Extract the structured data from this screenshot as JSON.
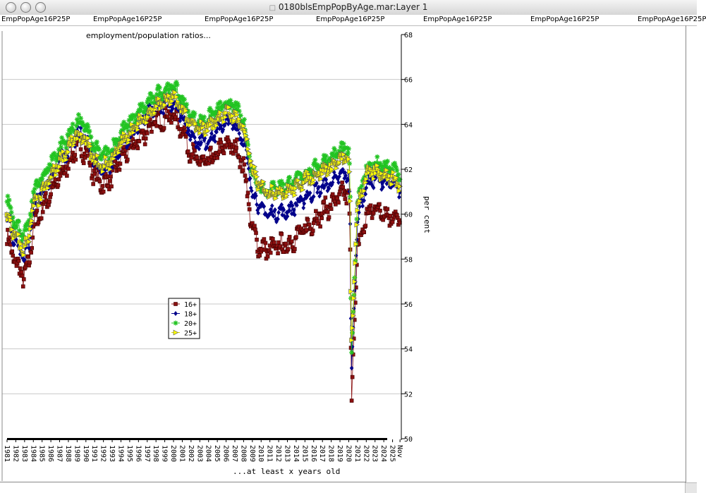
{
  "window": {
    "title": "0180blsEmpPopByAge.mar:Layer 1"
  },
  "tabs": [
    "EmpPopAge16P25P",
    "EmpPopAge16P25P",
    "EmpPopAge16P25P",
    "EmpPopAge16P25P",
    "EmpPopAge16P25P",
    "EmpPopAge16P25P",
    "EmpPopAge16P25P"
  ],
  "colors": {
    "s16": "#8b1010",
    "s18": "#00008b",
    "s20": "#22c422",
    "s25": "#ffff00"
  },
  "chart_data": {
    "type": "line",
    "title": "employment/population ratios...",
    "xlabel": "...at least x years old",
    "ylabel": "per cent",
    "ylim": [
      50,
      68
    ],
    "yticks": [
      50,
      52,
      54,
      56,
      58,
      60,
      62,
      64,
      66,
      68
    ],
    "xlim": [
      1981,
      2026.0
    ],
    "xtick_labels": [
      "1981",
      "1982",
      "1983",
      "1984",
      "1985",
      "1986",
      "1987",
      "1988",
      "1989",
      "1990",
      "1991",
      "1992",
      "1993",
      "1994",
      "1995",
      "1996",
      "1997",
      "1998",
      "1999",
      "2000",
      "2001",
      "2002",
      "2003",
      "2004",
      "2005",
      "2006",
      "2007",
      "2008",
      "2009",
      "2010",
      "2011",
      "2012",
      "2013",
      "2014",
      "2015",
      "2016",
      "2017",
      "2018",
      "2019",
      "2020",
      "2021",
      "2022",
      "2023",
      "2024",
      "2025",
      "Nov"
    ],
    "legend": {
      "position": "middle-left",
      "entries": [
        "16+",
        "18+",
        "20+",
        "25+"
      ]
    },
    "grid": "horizontal",
    "sampling": "annual anchors, drawn monthly with seasonal jitter",
    "series": [
      {
        "name": "16+",
        "marker": "square",
        "x": [
          1981,
          1982,
          1982.9,
          1983.5,
          1984,
          1985,
          1986,
          1987,
          1988,
          1989,
          1990,
          1991,
          1992,
          1993,
          1994,
          1995,
          1996,
          1997,
          1998,
          1999,
          2000,
          2001,
          2002,
          2003,
          2004,
          2005,
          2006,
          2007,
          2008,
          2009,
          2009.7,
          2010,
          2011,
          2012,
          2013,
          2014,
          2015,
          2016,
          2017,
          2018,
          2019,
          2020.0,
          2020.15,
          2020.3,
          2020.5,
          2021,
          2022,
          2023,
          2024,
          2025,
          2025.9
        ],
        "y": [
          59.0,
          57.8,
          57.2,
          57.8,
          59.5,
          60.2,
          61.0,
          61.6,
          62.3,
          63.0,
          62.8,
          61.7,
          61.3,
          61.7,
          62.5,
          62.9,
          63.3,
          63.8,
          64.1,
          64.3,
          64.4,
          63.8,
          62.7,
          62.3,
          62.3,
          62.7,
          63.1,
          63.0,
          62.2,
          59.3,
          58.6,
          58.5,
          58.4,
          58.6,
          58.6,
          59.0,
          59.3,
          59.7,
          60.1,
          60.4,
          60.8,
          61.0,
          59.2,
          51.3,
          53.8,
          58.4,
          59.9,
          60.3,
          60.1,
          59.9,
          59.7
        ]
      },
      {
        "name": "18+",
        "marker": "diamond",
        "x": [
          1981,
          1982,
          1982.9,
          1983.5,
          1984,
          1985,
          1986,
          1987,
          1988,
          1989,
          1990,
          1991,
          1992,
          1993,
          1994,
          1995,
          1996,
          1997,
          1998,
          1999,
          2000,
          2001,
          2002,
          2003,
          2004,
          2005,
          2006,
          2007,
          2008,
          2009,
          2009.7,
          2010,
          2011,
          2012,
          2013,
          2014,
          2015,
          2016,
          2017,
          2018,
          2019,
          2020.0,
          2020.15,
          2020.3,
          2020.5,
          2021,
          2022,
          2023,
          2024,
          2025,
          2025.9
        ],
        "y": [
          59.9,
          58.7,
          58.1,
          58.7,
          60.3,
          61.0,
          61.7,
          62.3,
          62.9,
          63.6,
          63.4,
          62.3,
          61.9,
          62.3,
          63.1,
          63.5,
          63.9,
          64.4,
          64.8,
          64.9,
          65.0,
          64.4,
          63.5,
          63.2,
          63.3,
          63.7,
          64.1,
          64.0,
          63.3,
          61.0,
          60.4,
          60.2,
          60.0,
          60.1,
          60.1,
          60.4,
          60.7,
          61.0,
          61.2,
          61.4,
          61.7,
          61.8,
          60.4,
          52.7,
          55.0,
          59.8,
          61.3,
          61.6,
          61.5,
          61.3,
          61.1
        ]
      },
      {
        "name": "20+",
        "marker": "asterisk",
        "x": [
          1981,
          1982,
          1982.9,
          1983.5,
          1984,
          1985,
          1986,
          1987,
          1988,
          1989,
          1990,
          1991,
          1992,
          1993,
          1994,
          1995,
          1996,
          1997,
          1998,
          1999,
          2000,
          2001,
          2002,
          2003,
          2004,
          2005,
          2006,
          2007,
          2008,
          2009,
          2009.7,
          2010,
          2011,
          2012,
          2013,
          2014,
          2015,
          2016,
          2017,
          2018,
          2019,
          2020.0,
          2020.15,
          2020.3,
          2020.5,
          2021,
          2022,
          2023,
          2024,
          2025,
          2025.9
        ],
        "y": [
          60.6,
          59.6,
          59.0,
          59.5,
          61.0,
          61.6,
          62.3,
          62.9,
          63.5,
          64.1,
          63.9,
          62.9,
          62.6,
          62.9,
          63.6,
          64.1,
          64.5,
          64.9,
          65.3,
          65.5,
          65.7,
          65.1,
          64.3,
          64.1,
          64.3,
          64.6,
          64.9,
          64.8,
          64.1,
          61.9,
          61.3,
          61.1,
          61.1,
          61.2,
          61.3,
          61.5,
          61.8,
          62.0,
          62.3,
          62.5,
          62.8,
          62.9,
          61.6,
          53.5,
          55.6,
          60.6,
          62.0,
          62.2,
          62.1,
          62.0,
          61.8
        ]
      },
      {
        "name": "25+",
        "marker": "triangle",
        "x": [
          1981,
          1982,
          1982.9,
          1983.5,
          1984,
          1985,
          1986,
          1987,
          1988,
          1989,
          1990,
          1991,
          1992,
          1993,
          1994,
          1995,
          1996,
          1997,
          1998,
          1999,
          2000,
          2001,
          2002,
          2003,
          2004,
          2005,
          2006,
          2007,
          2008,
          2009,
          2009.7,
          2010,
          2011,
          2012,
          2013,
          2014,
          2015,
          2016,
          2017,
          2018,
          2019,
          2020.0,
          2020.15,
          2020.3,
          2020.5,
          2021,
          2022,
          2023,
          2024,
          2025,
          2025.9
        ],
        "y": [
          59.9,
          59.0,
          58.4,
          58.9,
          60.3,
          60.9,
          61.6,
          62.3,
          62.9,
          63.5,
          63.3,
          62.4,
          62.1,
          62.4,
          63.1,
          63.6,
          64.0,
          64.4,
          64.8,
          65.0,
          65.2,
          64.7,
          64.0,
          63.8,
          63.9,
          64.2,
          64.5,
          64.4,
          63.9,
          62.0,
          61.4,
          61.2,
          61.0,
          61.0,
          61.0,
          61.2,
          61.5,
          61.7,
          61.9,
          62.1,
          62.4,
          62.5,
          61.3,
          54.1,
          55.5,
          60.2,
          61.7,
          61.9,
          61.8,
          61.6,
          61.3
        ]
      }
    ]
  }
}
